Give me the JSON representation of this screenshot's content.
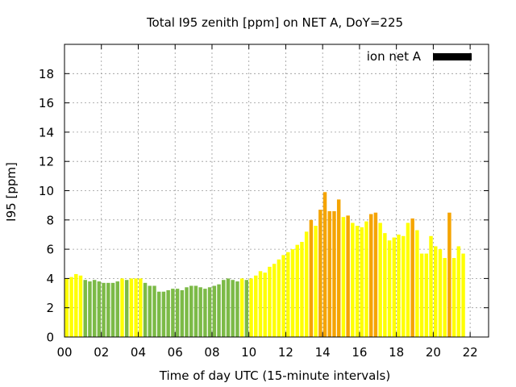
{
  "chart_data": {
    "type": "bar",
    "title": "Total I95 zenith [ppm] on NET A, DoY=225",
    "xlabel": "Time of day UTC (15-minute intervals)",
    "ylabel": "I95 [ppm]",
    "xlim": [
      0,
      23
    ],
    "ylim": [
      0,
      20
    ],
    "x_ticks": [
      "00",
      "02",
      "04",
      "06",
      "08",
      "10",
      "12",
      "14",
      "16",
      "18",
      "20",
      "22"
    ],
    "y_ticks": [
      "0",
      "2",
      "4",
      "6",
      "8",
      "10",
      "12",
      "14",
      "16",
      "18"
    ],
    "grid": true,
    "legend": {
      "position": "top-right",
      "label": "ion net A"
    },
    "bar_interval_hours": 0.25,
    "colors": {
      "green": "#7cba47",
      "yellow": "#ffff00",
      "orange": "#f5a400",
      "legend": "#000000"
    },
    "values": [
      4.0,
      4.1,
      4.3,
      4.2,
      3.9,
      3.8,
      3.9,
      3.8,
      3.7,
      3.7,
      3.7,
      3.8,
      4.0,
      3.9,
      4.0,
      4.0,
      4.0,
      3.7,
      3.5,
      3.5,
      3.1,
      3.1,
      3.2,
      3.3,
      3.3,
      3.2,
      3.4,
      3.5,
      3.5,
      3.4,
      3.3,
      3.4,
      3.5,
      3.6,
      3.9,
      4.0,
      3.9,
      3.8,
      4.0,
      3.9,
      4.0,
      4.2,
      4.5,
      4.4,
      4.8,
      5.0,
      5.3,
      5.6,
      5.8,
      6.0,
      6.3,
      6.5,
      7.2,
      8.0,
      7.6,
      8.7,
      9.9,
      8.6,
      8.6,
      9.4,
      8.2,
      8.3,
      7.8,
      7.6,
      7.5,
      7.9,
      8.4,
      8.5,
      7.8,
      7.1,
      6.6,
      6.8,
      7.0,
      6.9,
      7.8,
      8.1,
      7.3,
      5.7,
      5.7,
      6.9,
      6.2,
      6.0,
      5.4,
      8.5,
      5.4,
      6.2,
      5.7
    ],
    "levels": [
      "yellow",
      "yellow",
      "yellow",
      "yellow",
      "green",
      "green",
      "green",
      "green",
      "green",
      "green",
      "green",
      "green",
      "yellow",
      "green",
      "yellow",
      "yellow",
      "yellow",
      "green",
      "green",
      "green",
      "green",
      "green",
      "green",
      "green",
      "green",
      "green",
      "green",
      "green",
      "green",
      "green",
      "green",
      "green",
      "green",
      "green",
      "green",
      "green",
      "green",
      "green",
      "yellow",
      "green",
      "yellow",
      "yellow",
      "yellow",
      "yellow",
      "yellow",
      "yellow",
      "yellow",
      "yellow",
      "yellow",
      "yellow",
      "yellow",
      "yellow",
      "yellow",
      "orange",
      "yellow",
      "orange",
      "orange",
      "orange",
      "orange",
      "orange",
      "yellow",
      "orange",
      "yellow",
      "yellow",
      "yellow",
      "yellow",
      "orange",
      "orange",
      "yellow",
      "yellow",
      "yellow",
      "yellow",
      "yellow",
      "yellow",
      "yellow",
      "orange",
      "yellow",
      "yellow",
      "yellow",
      "yellow",
      "yellow",
      "yellow",
      "yellow",
      "orange",
      "yellow",
      "yellow",
      "yellow"
    ]
  }
}
